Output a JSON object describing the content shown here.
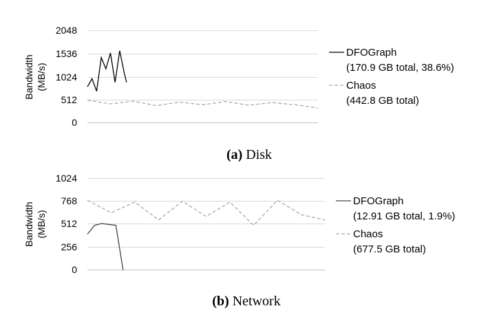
{
  "chart_data": [
    {
      "type": "line",
      "caption_tag": "(a)",
      "caption_text": "Disk",
      "ylabel_line1": "Bandwidth",
      "ylabel_line2": "(MB/s)",
      "yticks": [
        "2048",
        "1536",
        "1024",
        "512",
        "0"
      ],
      "ylim": [
        0,
        2048
      ],
      "xlim": [
        0,
        1
      ],
      "grid": true,
      "legend_position": "right",
      "series": [
        {
          "name": "DFOGraph",
          "legend_line2": "(170.9 GB total, 38.6%)",
          "color": "#000000",
          "style": "solid",
          "x": [
            0.0,
            0.02,
            0.04,
            0.06,
            0.08,
            0.1,
            0.12,
            0.14,
            0.16,
            0.17
          ],
          "values": [
            800,
            980,
            700,
            1450,
            1200,
            1550,
            900,
            1600,
            1100,
            900
          ]
        },
        {
          "name": "Chaos",
          "legend_line2": "(442.8 GB total)",
          "color": "#aaaaaa",
          "style": "dashed",
          "x": [
            0.0,
            0.1,
            0.2,
            0.3,
            0.4,
            0.5,
            0.6,
            0.7,
            0.8,
            0.9,
            1.0
          ],
          "values": [
            500,
            420,
            480,
            380,
            460,
            400,
            470,
            390,
            450,
            400,
            330
          ]
        }
      ]
    },
    {
      "type": "line",
      "caption_tag": "(b)",
      "caption_text": "Network",
      "ylabel_line1": "Bandwidth",
      "ylabel_line2": "(MB/s)",
      "yticks": [
        "1024",
        "768",
        "512",
        "256",
        "0"
      ],
      "ylim": [
        0,
        1024
      ],
      "xlim": [
        0,
        1
      ],
      "grid": true,
      "legend_position": "right",
      "series": [
        {
          "name": "DFOGraph",
          "legend_line2": "(12.91 GB total, 1.9%)",
          "color": "#444444",
          "style": "solid",
          "x": [
            0.0,
            0.03,
            0.06,
            0.09,
            0.12,
            0.15
          ],
          "values": [
            400,
            500,
            520,
            510,
            500,
            0
          ]
        },
        {
          "name": "Chaos",
          "legend_line2": "(677.5 GB total)",
          "color": "#aaaaaa",
          "style": "dashed",
          "x": [
            0.0,
            0.1,
            0.2,
            0.3,
            0.4,
            0.5,
            0.6,
            0.7,
            0.8,
            0.9,
            1.0
          ],
          "values": [
            780,
            640,
            760,
            560,
            770,
            600,
            760,
            500,
            780,
            620,
            560
          ]
        }
      ]
    }
  ]
}
